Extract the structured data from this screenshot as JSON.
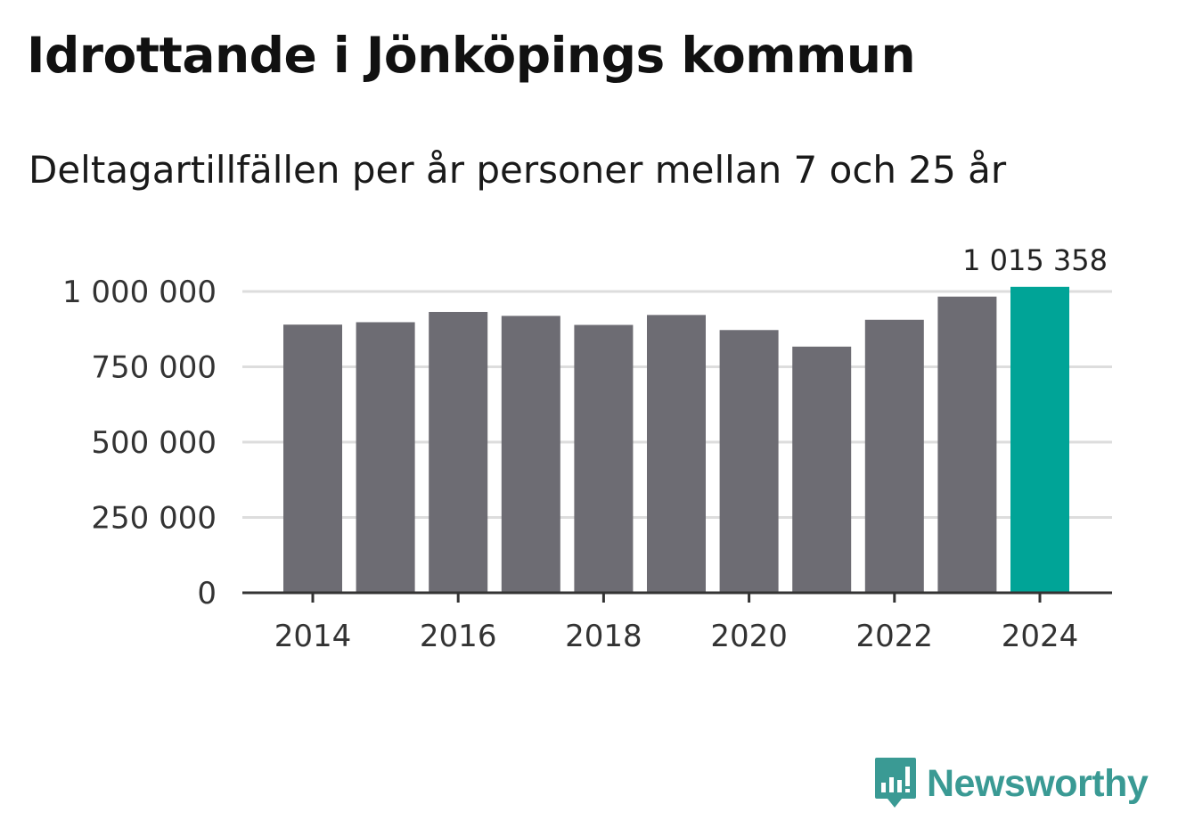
{
  "title": "Idrottande i Jönköpings kommun",
  "subtitle": "Deltagartillfällen per år personer mellan 7 och 25 år",
  "brand": {
    "name": "Newsworthy",
    "color": "#3a9a94"
  },
  "colors": {
    "bar": "#6d6c73",
    "highlight": "#00a497",
    "grid": "#dddddd",
    "axis": "#333333",
    "tick_label": "#333333",
    "value_label": "#222222"
  },
  "chart_data": {
    "type": "bar",
    "title": "Idrottande i Jönköpings kommun",
    "subtitle": "Deltagartillfällen per år personer mellan 7 och 25 år",
    "categories": [
      2014,
      2015,
      2016,
      2017,
      2018,
      2019,
      2020,
      2021,
      2022,
      2023,
      2024
    ],
    "values": [
      890000,
      898000,
      932000,
      919000,
      889000,
      922000,
      872000,
      817000,
      906000,
      983000,
      1015358
    ],
    "highlight_index": 10,
    "highlight_label": "1 015 358",
    "xlabel": "",
    "ylabel": "",
    "ylim": [
      0,
      1000000
    ],
    "yticks": [
      {
        "value": 0,
        "label": "0"
      },
      {
        "value": 250000,
        "label": "250 000"
      },
      {
        "value": 500000,
        "label": "500 000"
      },
      {
        "value": 750000,
        "label": "750 000"
      },
      {
        "value": 1000000,
        "label": "1 000 000"
      }
    ],
    "xticks": [
      {
        "value": 2014,
        "label": "2014"
      },
      {
        "value": 2016,
        "label": "2016"
      },
      {
        "value": 2018,
        "label": "2018"
      },
      {
        "value": 2020,
        "label": "2020"
      },
      {
        "value": 2022,
        "label": "2022"
      },
      {
        "value": 2024,
        "label": "2024"
      }
    ],
    "grid": true,
    "legend": "none"
  }
}
